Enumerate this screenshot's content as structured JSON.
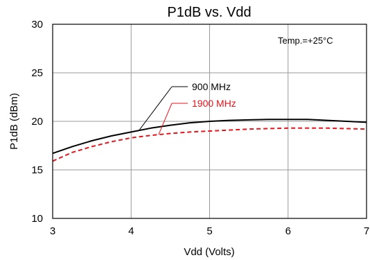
{
  "chart_data": {
    "type": "line",
    "title": "P1dB vs. Vdd",
    "xlabel": "Vdd (Volts)",
    "ylabel": "P1dB (dBm)",
    "xlim": [
      3,
      7
    ],
    "ylim": [
      10,
      30
    ],
    "x_ticks": [
      3,
      4,
      5,
      6,
      7
    ],
    "y_ticks": [
      10,
      15,
      20,
      25,
      30
    ],
    "grid": true,
    "annotation": "Temp.=+25°C",
    "series": [
      {
        "name": "900 MHz",
        "color": "#000000",
        "line_style": "solid",
        "x": [
          3.0,
          3.25,
          3.5,
          3.75,
          4.0,
          4.25,
          4.5,
          4.75,
          5.0,
          5.25,
          5.5,
          5.75,
          6.0,
          6.25,
          6.5,
          6.75,
          7.0
        ],
        "y": [
          16.7,
          17.4,
          18.0,
          18.5,
          18.9,
          19.3,
          19.6,
          19.85,
          20.0,
          20.1,
          20.15,
          20.2,
          20.2,
          20.2,
          20.1,
          20.0,
          19.9
        ]
      },
      {
        "name": "1900 MHz",
        "color": "#e8141b",
        "line_style": "dashed",
        "x": [
          3.0,
          3.25,
          3.5,
          3.75,
          4.0,
          4.25,
          4.5,
          4.75,
          5.0,
          5.25,
          5.5,
          5.75,
          6.0,
          6.25,
          6.5,
          6.75,
          7.0
        ],
        "y": [
          15.9,
          16.8,
          17.4,
          17.9,
          18.3,
          18.55,
          18.75,
          18.9,
          19.0,
          19.1,
          19.2,
          19.25,
          19.3,
          19.3,
          19.3,
          19.25,
          19.2
        ]
      }
    ],
    "series_label_leaders": [
      {
        "series": 0,
        "anchor_x": 4.1
      },
      {
        "series": 1,
        "anchor_x": 4.35
      }
    ]
  }
}
